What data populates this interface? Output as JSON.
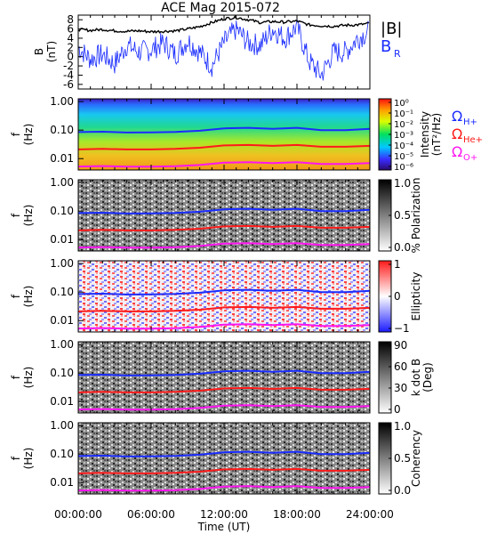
{
  "title": "ACE Mag 2015-072",
  "xlabel": "Time (UT)",
  "xticks": [
    "00:00:00",
    "06:00:00",
    "12:00:00",
    "18:00:00",
    "24:00:00"
  ],
  "colors": {
    "blue": "#1a2cff",
    "red": "#ff1a1a",
    "magenta": "#ff14f0",
    "black": "#000000"
  },
  "chart_data": [
    {
      "type": "line",
      "panel": "field",
      "ylabel": [
        "B",
        "(nT)"
      ],
      "ylim": [
        -7,
        9
      ],
      "yticks": [
        "8",
        "6",
        "4",
        "2",
        "0",
        "-2",
        "-4",
        "-6"
      ],
      "legend": [
        "|B|",
        "B",
        "R"
      ],
      "x_hours": [
        0,
        1,
        2,
        3,
        4,
        5,
        6,
        7,
        8,
        9,
        10,
        11,
        12,
        13,
        14,
        15,
        16,
        17,
        18,
        19,
        20,
        21,
        22,
        23,
        24
      ],
      "series": [
        {
          "name": "|B|",
          "color": "black",
          "values": [
            5.9,
            5.7,
            5.9,
            5.6,
            5.5,
            5.6,
            5.4,
            5.5,
            5.6,
            6.0,
            6.5,
            7.4,
            8.2,
            8.5,
            8.0,
            7.4,
            7.6,
            7.5,
            7.7,
            6.9,
            6.7,
            6.6,
            6.8,
            6.9,
            7.2
          ]
        },
        {
          "name": "B_R",
          "color": "blue",
          "values": [
            2.0,
            -0.5,
            0.5,
            -1.5,
            2.5,
            1.0,
            1.5,
            3.0,
            0.5,
            3.5,
            1.0,
            -2.0,
            3.0,
            6.0,
            3.0,
            2.5,
            6.0,
            4.0,
            6.5,
            -1.0,
            -4.0,
            1.0,
            1.0,
            4.0,
            5.5
          ]
        }
      ]
    },
    {
      "type": "heatmap",
      "panel": "intensity",
      "ylabel": [
        "f",
        "(Hz)"
      ],
      "yticks": [
        "1.00",
        "0.10",
        "0.01"
      ],
      "colorbar": {
        "label": [
          "Intensity",
          "(nT²/Hz)"
        ],
        "ticks": [
          "10⁰",
          "10⁻¹",
          "10⁻²",
          "10⁻³",
          "10⁻⁴",
          "10⁻⁵",
          "10⁻⁶"
        ],
        "colormap": "rainbow"
      },
      "legend": [
        "Ω",
        "H+",
        "Ω",
        "He+",
        "Ω",
        "O+"
      ]
    },
    {
      "type": "heatmap",
      "panel": "polarization",
      "ylabel": [
        "f",
        "(Hz)"
      ],
      "yticks": [
        "1.00",
        "0.10",
        "0.01"
      ],
      "colorbar": {
        "label": [
          "% Polarization"
        ],
        "ticks": [
          "1.0",
          "0.5",
          "0.0"
        ],
        "colormap": "gray"
      }
    },
    {
      "type": "heatmap",
      "panel": "ellipticity",
      "ylabel": [
        "f",
        "(Hz)"
      ],
      "yticks": [
        "1.00",
        "0.10",
        "0.01"
      ],
      "colorbar": {
        "label": [
          "Ellipticity"
        ],
        "ticks": [
          "1",
          "0",
          "−1"
        ],
        "colormap": "bluewhitered"
      }
    },
    {
      "type": "heatmap",
      "panel": "kdotb",
      "ylabel": [
        "f",
        "(Hz)"
      ],
      "yticks": [
        "1.00",
        "0.10",
        "0.01"
      ],
      "colorbar": {
        "label": [
          "k dot B",
          "(Deg)"
        ],
        "ticks": [
          "90",
          "60",
          "30",
          "0"
        ],
        "colormap": "gray"
      }
    },
    {
      "type": "heatmap",
      "panel": "coherency",
      "ylabel": [
        "f",
        "(Hz)"
      ],
      "yticks": [
        "1.00",
        "0.10",
        "0.01"
      ],
      "colorbar": {
        "label": [
          "Coherency"
        ],
        "ticks": [
          "1.0",
          "0.5",
          "0.0"
        ],
        "colormap": "gray"
      }
    }
  ],
  "gyrofrequency_lines": {
    "x_hours": [
      0,
      2,
      4,
      6,
      8,
      10,
      12,
      14,
      16,
      18,
      20,
      22,
      24
    ],
    "series": [
      {
        "name": "Ω_H+",
        "color": "blue",
        "values": [
          0.085,
          0.088,
          0.082,
          0.083,
          0.086,
          0.095,
          0.115,
          0.12,
          0.11,
          0.12,
          0.1,
          0.1,
          0.11
        ]
      },
      {
        "name": "Ω_He+",
        "color": "red",
        "values": [
          0.021,
          0.022,
          0.021,
          0.021,
          0.022,
          0.024,
          0.029,
          0.03,
          0.028,
          0.03,
          0.026,
          0.026,
          0.028
        ]
      },
      {
        "name": "Ω_O+",
        "color": "magenta",
        "values": [
          0.0053,
          0.0055,
          0.0052,
          0.0052,
          0.0054,
          0.006,
          0.0072,
          0.0075,
          0.007,
          0.0075,
          0.0065,
          0.0065,
          0.007
        ]
      }
    ]
  }
}
